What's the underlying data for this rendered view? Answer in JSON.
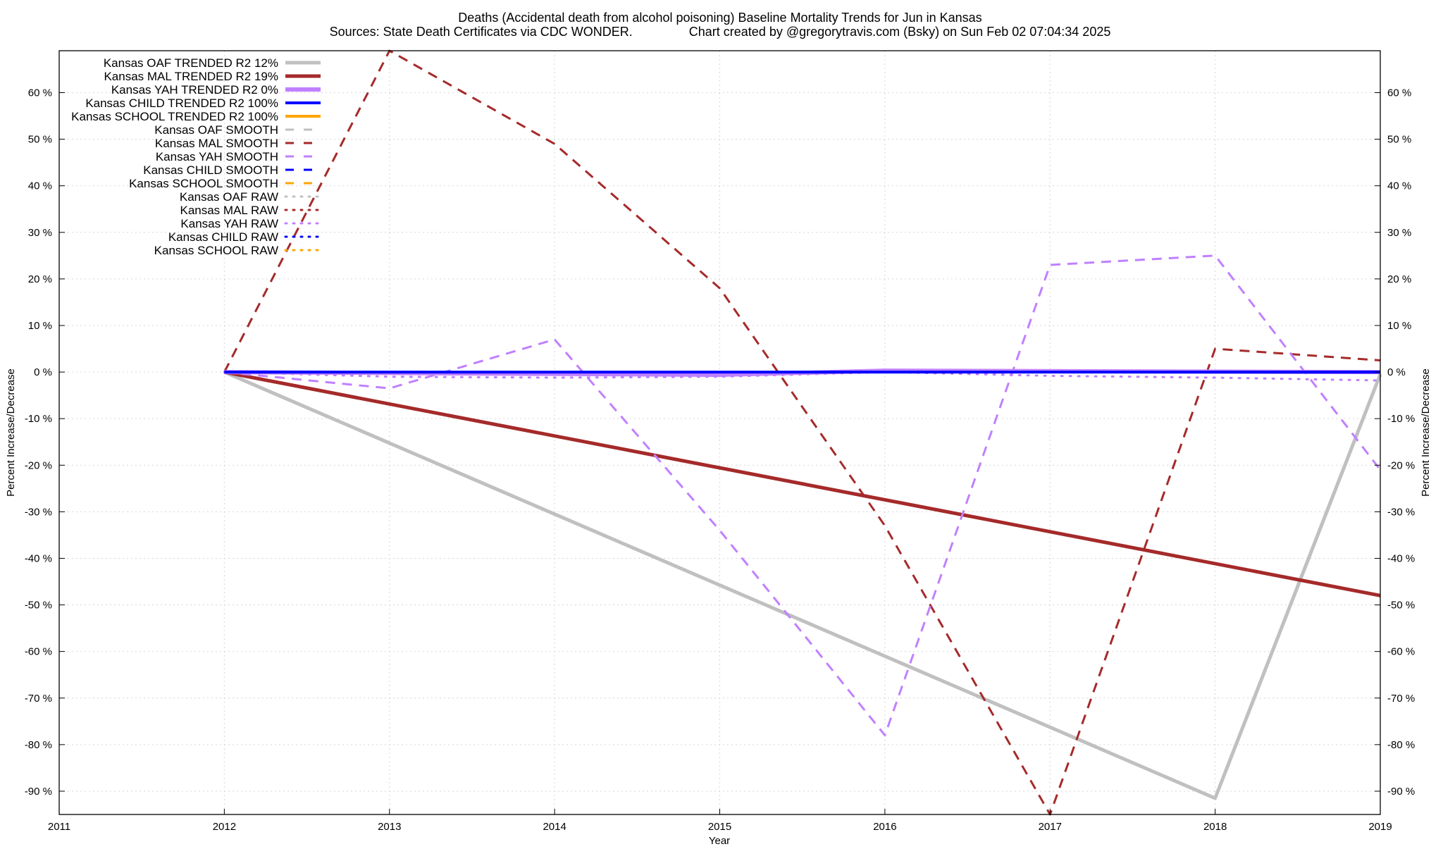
{
  "title_line1": "Deaths (Accidental death from alcohol poisoning)  Baseline Mortality Trends for Jun in Kansas",
  "title_line2": "Sources: State Death Certificates via CDC WONDER.                Chart created by @gregorytravis.com (Bsky) on Sun Feb 02 07:04:34 2025",
  "chart_data": {
    "type": "line",
    "title": "Deaths (Accidental death from alcohol poisoning)  Baseline Mortality Trends for Jun in Kansas",
    "subtitle": "Sources: State Death Certificates via CDC WONDER.                Chart created by @gregorytravis.com (Bsky) on Sun Feb 02 07:04:34 2025",
    "xlabel": "Year",
    "ylabel": "Percent Increase/Decrease",
    "y2label": "Percent Increase/Decrease",
    "xlim": [
      2011,
      2019
    ],
    "ylim": [
      -95,
      69
    ],
    "x_ticks": [
      2011,
      2012,
      2013,
      2014,
      2015,
      2016,
      2017,
      2018,
      2019
    ],
    "y_ticks": [
      60,
      50,
      40,
      30,
      20,
      10,
      0,
      -10,
      -20,
      -30,
      -40,
      -50,
      -60,
      -70,
      -80,
      -90
    ],
    "y_tick_labels": [
      "60 %",
      "50 %",
      "40 %",
      "30 %",
      "20 %",
      "10 %",
      "0 %",
      "-10 %",
      "-20 %",
      "-30 %",
      "-40 %",
      "-50 %",
      "-60 %",
      "-70 %",
      "-80 %",
      "-90 %"
    ],
    "grid": true,
    "legend_position": "top-left",
    "series": [
      {
        "name": "Kansas OAF TRENDED R2  12%",
        "color": "#c0c0c0",
        "style": "solid",
        "width": 5,
        "x": [
          2012,
          2018,
          2019
        ],
        "y": [
          0,
          -91.5,
          -0.5
        ]
      },
      {
        "name": "Kansas MAL TRENDED R2  19%",
        "color": "#a52a2a",
        "style": "solid",
        "width": 5,
        "x": [
          2012,
          2019
        ],
        "y": [
          0,
          -48
        ]
      },
      {
        "name": "Kansas YAH TRENDED R2   0%",
        "color": "#c080ff",
        "style": "solid",
        "width": 6,
        "x": [
          2012,
          2015,
          2016,
          2019
        ],
        "y": [
          0,
          -0.6,
          0.3,
          0
        ]
      },
      {
        "name": "Kansas CHILD TRENDED R2 100%",
        "color": "#0000ff",
        "style": "solid",
        "width": 4,
        "x": [
          2012,
          2019
        ],
        "y": [
          0,
          0
        ]
      },
      {
        "name": "Kansas SCHOOL TRENDED R2 100%",
        "color": "#ffa500",
        "style": "solid",
        "width": 4,
        "x": [],
        "y": []
      },
      {
        "name": "Kansas OAF SMOOTH",
        "color": "#c0c0c0",
        "style": "dashed",
        "width": 3,
        "x": [],
        "y": []
      },
      {
        "name": "Kansas MAL SMOOTH",
        "color": "#a52a2a",
        "style": "dashed",
        "width": 3,
        "x": [
          2012,
          2013,
          2014,
          2015,
          2016,
          2017,
          2018,
          2019
        ],
        "y": [
          0,
          69,
          49,
          18,
          -33,
          -95,
          5,
          2.5
        ]
      },
      {
        "name": "Kansas YAH SMOOTH",
        "color": "#c080ff",
        "style": "dashed",
        "width": 3,
        "x": [
          2012,
          2013,
          2014,
          2015,
          2016,
          2017,
          2018,
          2018.5,
          2019
        ],
        "y": [
          0,
          -3.5,
          7,
          -34,
          -78,
          23,
          25,
          2,
          -21
        ]
      },
      {
        "name": "Kansas CHILD SMOOTH",
        "color": "#0000ff",
        "style": "dashed",
        "width": 3,
        "x": [],
        "y": []
      },
      {
        "name": "Kansas SCHOOL SMOOTH",
        "color": "#ffa500",
        "style": "dashed",
        "width": 3,
        "x": [],
        "y": []
      },
      {
        "name": "Kansas OAF RAW",
        "color": "#c0c0c0",
        "style": "dotted",
        "width": 3,
        "x": [],
        "y": []
      },
      {
        "name": "Kansas MAL RAW",
        "color": "#a52a2a",
        "style": "dotted",
        "width": 3,
        "x": [],
        "y": []
      },
      {
        "name": "Kansas YAH RAW",
        "color": "#c080ff",
        "style": "dotted",
        "width": 3,
        "x": [
          2012,
          2013,
          2014,
          2015,
          2016,
          2017,
          2018,
          2019
        ],
        "y": [
          0,
          -1,
          -1.2,
          -1,
          0,
          -0.8,
          -1.2,
          -1.8
        ]
      },
      {
        "name": "Kansas CHILD RAW",
        "color": "#0000ff",
        "style": "dotted",
        "width": 3,
        "x": [],
        "y": []
      },
      {
        "name": "Kansas SCHOOL RAW",
        "color": "#ffa500",
        "style": "dotted",
        "width": 3,
        "x": [],
        "y": []
      }
    ]
  }
}
